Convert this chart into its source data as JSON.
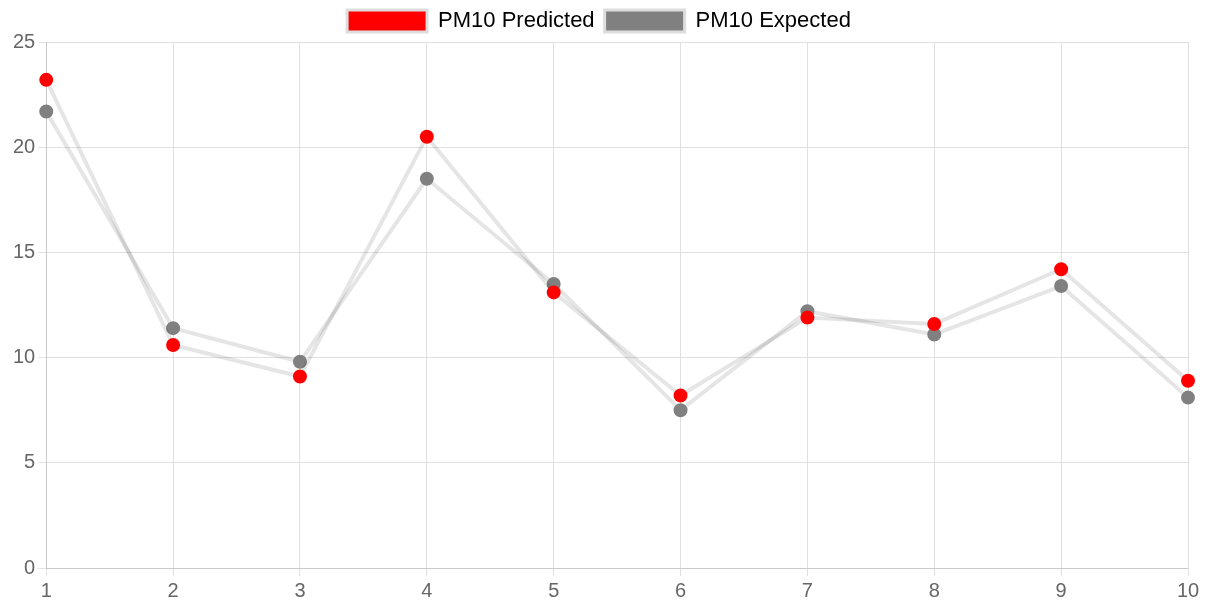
{
  "chart_data": {
    "type": "line",
    "categories": [
      "1",
      "2",
      "3",
      "4",
      "5",
      "6",
      "7",
      "8",
      "9",
      "10"
    ],
    "series": [
      {
        "name": "PM10 Predicted",
        "color": "#ff0000",
        "values": [
          23.2,
          10.6,
          9.1,
          20.5,
          13.1,
          8.2,
          11.9,
          11.6,
          14.2,
          8.9
        ]
      },
      {
        "name": "PM10 Expected",
        "color": "#808080",
        "values": [
          21.7,
          11.4,
          9.8,
          18.5,
          13.5,
          7.5,
          12.2,
          11.1,
          13.4,
          8.1
        ]
      }
    ],
    "ylim": [
      0,
      25
    ],
    "yticks": [
      0,
      5,
      10,
      15,
      20,
      25
    ],
    "grid": true,
    "legend": "top",
    "marker": "circle",
    "line_style": "solid"
  }
}
